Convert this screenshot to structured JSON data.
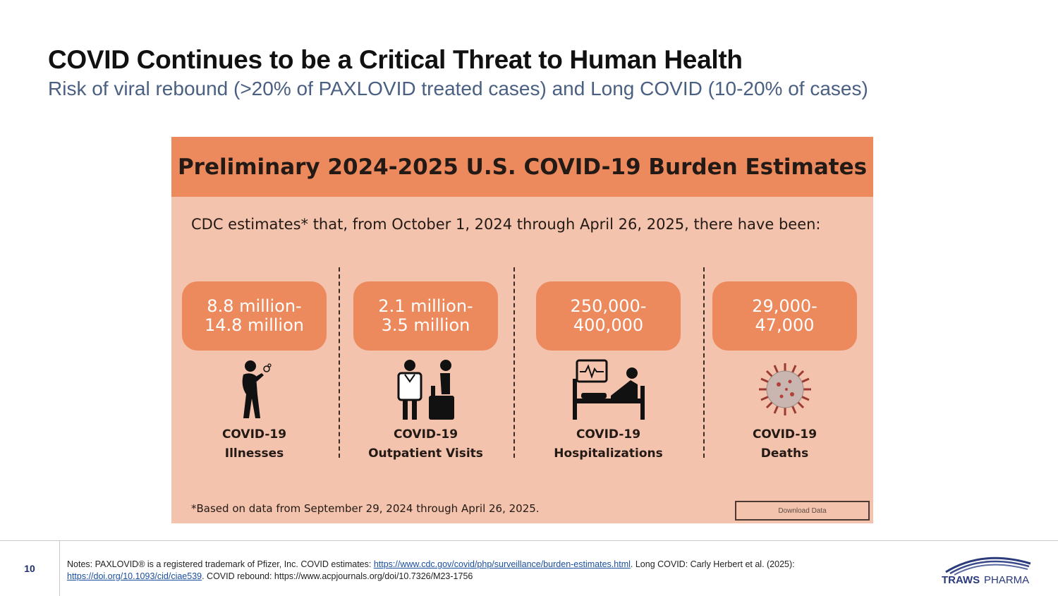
{
  "slide": {
    "title": "COVID Continues to be a Critical Threat to Human Health",
    "subtitle": "Risk of viral rebound (>20% of PAXLOVID treated cases) and Long COVID (10-20% of cases)"
  },
  "infographic": {
    "header": "Preliminary 2024-2025 U.S. COVID-19 Burden Estimates",
    "intro": "CDC estimates* that, from October 1, 2024 through April 26, 2025, there have been:",
    "stats": [
      {
        "line1": "8.8 million-",
        "line2": "14.8 million",
        "label1": "COVID-19",
        "label2": "Illnesses",
        "icon": "sick-person-icon"
      },
      {
        "line1": "2.1 million-",
        "line2": "3.5 million",
        "label1": "COVID-19",
        "label2": "Outpatient Visits",
        "icon": "doctor-patient-icon"
      },
      {
        "line1": "250,000-",
        "line2": "400,000",
        "label1": "COVID-19",
        "label2": "Hospitalizations",
        "icon": "hospital-bed-icon"
      },
      {
        "line1": "29,000-",
        "line2": "47,000",
        "label1": "COVID-19",
        "label2": "Deaths",
        "icon": "virus-icon"
      }
    ],
    "footnote": "*Based on data from September 29, 2024 through April 26, 2025.",
    "download_label": "Download Data"
  },
  "footer": {
    "page_number": "10",
    "notes_part1": "Notes: PAXLOVID® is a registered trademark of Pfizer, Inc. COVID estimates: ",
    "link1": "https://www.cdc.gov/covid/php/surveillance/burden-estimates.html",
    "notes_part2": ". Long COVID: Carly Herbert et al. (2025): ",
    "link2": "https://doi.org/10.1093/cid/ciae539",
    "notes_part3": ". COVID rebound: https://www.acpjournals.org/doi/10.7326/M23-1756",
    "logo_text_1": "TRAWS",
    "logo_text_2": "PHARMA"
  },
  "colors": {
    "header_orange": "#ec8a5e",
    "panel_peach": "#f4c3ad",
    "subtitle_blue": "#4a6082",
    "logo_navy": "#2a3a7a"
  }
}
